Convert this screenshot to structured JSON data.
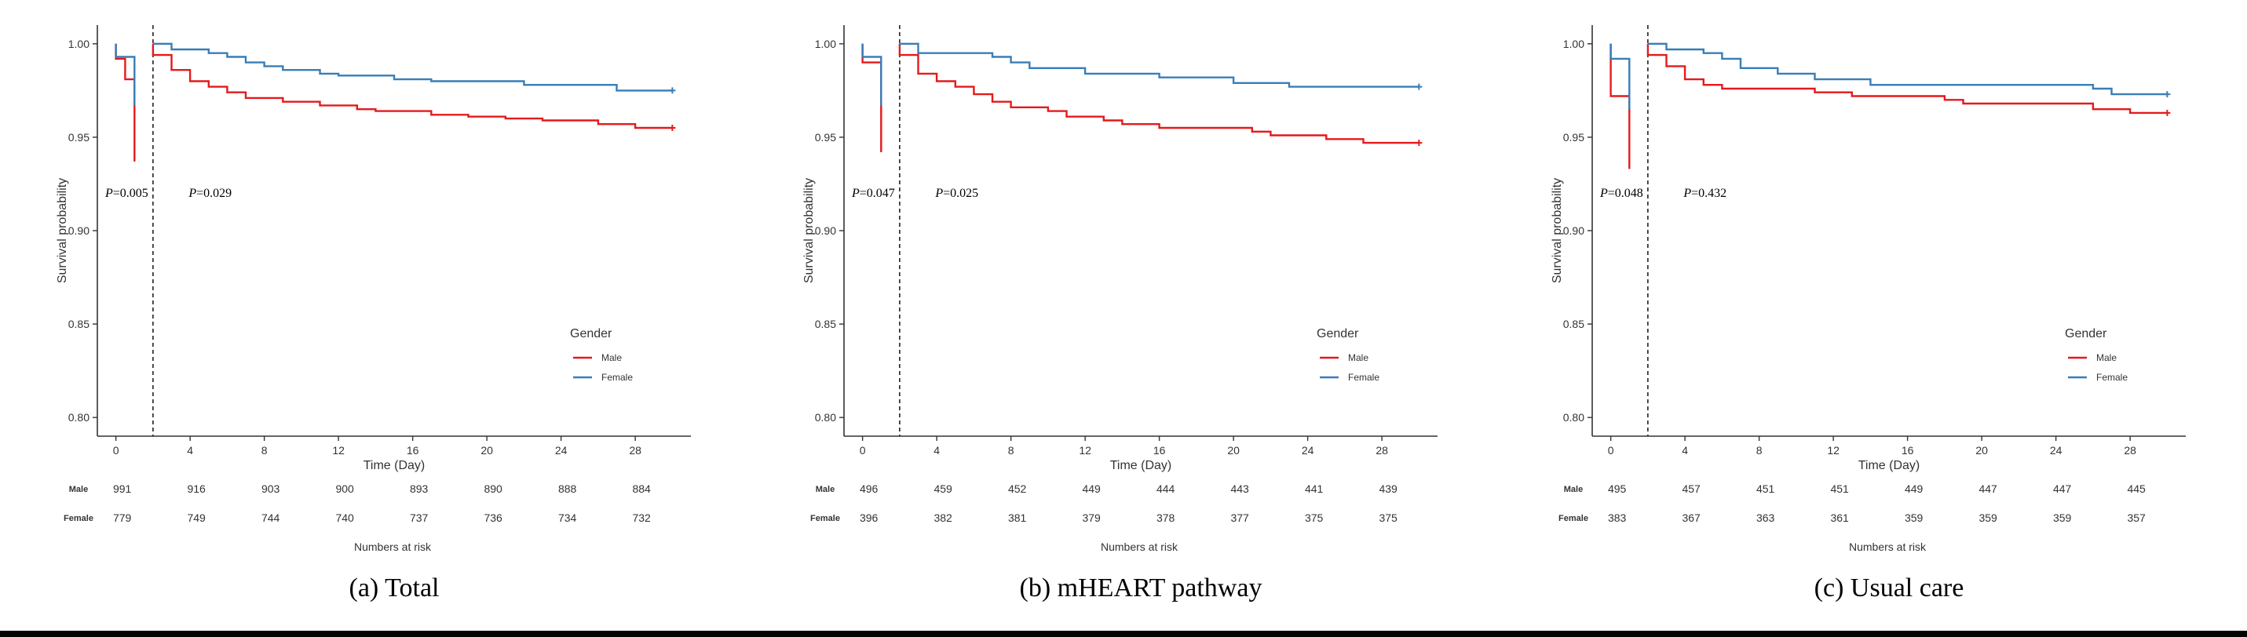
{
  "colors": {
    "male": "#e41a1c",
    "female": "#377eb8",
    "axis": "#333333",
    "text": "#000000"
  },
  "chart_data": [
    {
      "type": "line",
      "panel": "a",
      "caption": "(a) Total",
      "title": "",
      "xlabel": "Time (Day)",
      "ylabel": "Survival probability",
      "xlim": [
        -1,
        31
      ],
      "ylim": [
        0.79,
        1.01
      ],
      "xticks": [
        0,
        4,
        8,
        12,
        16,
        20,
        24,
        28
      ],
      "yticks": [
        0.8,
        0.85,
        0.9,
        0.95,
        1.0
      ],
      "ytick_labels": [
        "0.80",
        "0.85",
        "0.90",
        "0.95",
        "1.00"
      ],
      "landmark_day": 2,
      "pvalues": [
        {
          "label": "P",
          "text": "=0.005",
          "x": -1,
          "y": 0.918
        },
        {
          "label": "P",
          "text": "=0.029",
          "x": 3.5,
          "y": 0.918
        }
      ],
      "legend": {
        "title": "Gender",
        "entries": [
          "Male",
          "Female"
        ],
        "position": "center-right"
      },
      "series": [
        {
          "name": "Male",
          "color": "#e41a1c",
          "segments": [
            [
              [
                0,
                1.0
              ],
              [
                0,
                0.992
              ],
              [
                0.5,
                0.992
              ],
              [
                0.5,
                0.981
              ],
              [
                1,
                0.981
              ],
              [
                1,
                0.937
              ]
            ],
            [
              [
                2,
                1.0
              ],
              [
                2,
                0.994
              ],
              [
                3,
                0.994
              ],
              [
                3,
                0.986
              ],
              [
                4,
                0.986
              ],
              [
                4,
                0.98
              ],
              [
                5,
                0.98
              ],
              [
                5,
                0.977
              ],
              [
                6,
                0.977
              ],
              [
                6,
                0.974
              ],
              [
                7,
                0.974
              ],
              [
                7,
                0.971
              ],
              [
                9,
                0.971
              ],
              [
                9,
                0.969
              ],
              [
                11,
                0.969
              ],
              [
                11,
                0.967
              ],
              [
                13,
                0.967
              ],
              [
                13,
                0.965
              ],
              [
                14,
                0.965
              ],
              [
                14,
                0.964
              ],
              [
                17,
                0.964
              ],
              [
                17,
                0.962
              ],
              [
                19,
                0.962
              ],
              [
                19,
                0.961
              ],
              [
                21,
                0.961
              ],
              [
                21,
                0.96
              ],
              [
                23,
                0.96
              ],
              [
                23,
                0.959
              ],
              [
                26,
                0.959
              ],
              [
                26,
                0.957
              ],
              [
                28,
                0.957
              ],
              [
                28,
                0.955
              ],
              [
                30,
                0.955
              ]
            ]
          ]
        },
        {
          "name": "Female",
          "color": "#377eb8",
          "segments": [
            [
              [
                0,
                1.0
              ],
              [
                0,
                0.993
              ],
              [
                1,
                0.993
              ],
              [
                1,
                0.967
              ]
            ],
            [
              [
                2,
                1.0
              ],
              [
                3,
                1.0
              ],
              [
                3,
                0.997
              ],
              [
                5,
                0.997
              ],
              [
                5,
                0.995
              ],
              [
                6,
                0.995
              ],
              [
                6,
                0.993
              ],
              [
                7,
                0.993
              ],
              [
                7,
                0.99
              ],
              [
                8,
                0.99
              ],
              [
                8,
                0.988
              ],
              [
                9,
                0.988
              ],
              [
                9,
                0.986
              ],
              [
                11,
                0.986
              ],
              [
                11,
                0.984
              ],
              [
                12,
                0.984
              ],
              [
                12,
                0.983
              ],
              [
                15,
                0.983
              ],
              [
                15,
                0.981
              ],
              [
                17,
                0.981
              ],
              [
                17,
                0.98
              ],
              [
                22,
                0.98
              ],
              [
                22,
                0.978
              ],
              [
                27,
                0.978
              ],
              [
                27,
                0.975
              ],
              [
                30,
                0.975
              ]
            ]
          ]
        }
      ],
      "risk_table": {
        "title": "Numbers at risk",
        "x": [
          0,
          4,
          8,
          12,
          16,
          20,
          24,
          28
        ],
        "rows": [
          {
            "name": "Male",
            "values": [
              "991",
              "916",
              "903",
              "900",
              "893",
              "890",
              "888",
              "884"
            ]
          },
          {
            "name": "Female",
            "values": [
              "779",
              "749",
              "744",
              "740",
              "737",
              "736",
              "734",
              "732"
            ]
          }
        ]
      }
    },
    {
      "type": "line",
      "panel": "b",
      "caption": "(b) mHEART pathway",
      "title": "",
      "xlabel": "Time (Day)",
      "ylabel": "Survival probability",
      "xlim": [
        -1,
        31
      ],
      "ylim": [
        0.79,
        1.01
      ],
      "xticks": [
        0,
        4,
        8,
        12,
        16,
        20,
        24,
        28
      ],
      "yticks": [
        0.8,
        0.85,
        0.9,
        0.95,
        1.0
      ],
      "ytick_labels": [
        "0.80",
        "0.85",
        "0.90",
        "0.95",
        "1.00"
      ],
      "landmark_day": 2,
      "pvalues": [
        {
          "label": "P",
          "text": "=0.047",
          "x": -1,
          "y": 0.918
        },
        {
          "label": "P",
          "text": "=0.025",
          "x": 3.5,
          "y": 0.918
        }
      ],
      "legend": {
        "title": "Gender",
        "entries": [
          "Male",
          "Female"
        ],
        "position": "center-right"
      },
      "series": [
        {
          "name": "Male",
          "color": "#e41a1c",
          "segments": [
            [
              [
                0,
                1.0
              ],
              [
                0,
                0.99
              ],
              [
                1,
                0.99
              ],
              [
                1,
                0.942
              ]
            ],
            [
              [
                2,
                1.0
              ],
              [
                2,
                0.994
              ],
              [
                3,
                0.994
              ],
              [
                3,
                0.984
              ],
              [
                4,
                0.984
              ],
              [
                4,
                0.98
              ],
              [
                5,
                0.98
              ],
              [
                5,
                0.977
              ],
              [
                6,
                0.977
              ],
              [
                6,
                0.973
              ],
              [
                7,
                0.973
              ],
              [
                7,
                0.969
              ],
              [
                8,
                0.969
              ],
              [
                8,
                0.966
              ],
              [
                10,
                0.966
              ],
              [
                10,
                0.964
              ],
              [
                11,
                0.964
              ],
              [
                11,
                0.961
              ],
              [
                13,
                0.961
              ],
              [
                13,
                0.959
              ],
              [
                14,
                0.959
              ],
              [
                14,
                0.957
              ],
              [
                16,
                0.957
              ],
              [
                16,
                0.955
              ],
              [
                21,
                0.955
              ],
              [
                21,
                0.953
              ],
              [
                22,
                0.953
              ],
              [
                22,
                0.951
              ],
              [
                25,
                0.951
              ],
              [
                25,
                0.949
              ],
              [
                27,
                0.949
              ],
              [
                27,
                0.947
              ],
              [
                30,
                0.947
              ]
            ]
          ]
        },
        {
          "name": "Female",
          "color": "#377eb8",
          "segments": [
            [
              [
                0,
                1.0
              ],
              [
                0,
                0.993
              ],
              [
                1,
                0.993
              ],
              [
                1,
                0.967
              ]
            ],
            [
              [
                2,
                1.0
              ],
              [
                3,
                1.0
              ],
              [
                3,
                0.995
              ],
              [
                7,
                0.995
              ],
              [
                7,
                0.993
              ],
              [
                8,
                0.993
              ],
              [
                8,
                0.99
              ],
              [
                9,
                0.99
              ],
              [
                9,
                0.987
              ],
              [
                12,
                0.987
              ],
              [
                12,
                0.984
              ],
              [
                16,
                0.984
              ],
              [
                16,
                0.982
              ],
              [
                20,
                0.982
              ],
              [
                20,
                0.979
              ],
              [
                23,
                0.979
              ],
              [
                23,
                0.977
              ],
              [
                30,
                0.977
              ]
            ]
          ]
        }
      ],
      "risk_table": {
        "title": "Numbers at risk",
        "x": [
          0,
          4,
          8,
          12,
          16,
          20,
          24,
          28
        ],
        "rows": [
          {
            "name": "Male",
            "values": [
              "496",
              "459",
              "452",
              "449",
              "444",
              "443",
              "441",
              "439"
            ]
          },
          {
            "name": "Female",
            "values": [
              "396",
              "382",
              "381",
              "379",
              "378",
              "377",
              "375",
              "375"
            ]
          }
        ]
      }
    },
    {
      "type": "line",
      "panel": "c",
      "caption": "(c) Usual care",
      "title": "",
      "xlabel": "Time (Day)",
      "ylabel": "Survival probability",
      "xlim": [
        -1,
        31
      ],
      "ylim": [
        0.79,
        1.01
      ],
      "xticks": [
        0,
        4,
        8,
        12,
        16,
        20,
        24,
        28
      ],
      "yticks": [
        0.8,
        0.85,
        0.9,
        0.95,
        1.0
      ],
      "ytick_labels": [
        "0.80",
        "0.85",
        "0.90",
        "0.95",
        "1.00"
      ],
      "landmark_day": 2,
      "pvalues": [
        {
          "label": "P",
          "text": "=0.048",
          "x": -1,
          "y": 0.918
        },
        {
          "label": "P",
          "text": "=0.432",
          "x": 3.5,
          "y": 0.918
        }
      ],
      "legend": {
        "title": "Gender",
        "entries": [
          "Male",
          "Female"
        ],
        "position": "center-right"
      },
      "series": [
        {
          "name": "Male",
          "color": "#e41a1c",
          "segments": [
            [
              [
                0,
                1.0
              ],
              [
                0,
                0.972
              ],
              [
                1,
                0.972
              ],
              [
                1,
                0.933
              ]
            ],
            [
              [
                2,
                1.0
              ],
              [
                2,
                0.994
              ],
              [
                3,
                0.994
              ],
              [
                3,
                0.988
              ],
              [
                4,
                0.988
              ],
              [
                4,
                0.981
              ],
              [
                5,
                0.981
              ],
              [
                5,
                0.978
              ],
              [
                6,
                0.978
              ],
              [
                6,
                0.976
              ],
              [
                11,
                0.976
              ],
              [
                11,
                0.974
              ],
              [
                13,
                0.974
              ],
              [
                13,
                0.972
              ],
              [
                18,
                0.972
              ],
              [
                18,
                0.97
              ],
              [
                19,
                0.97
              ],
              [
                19,
                0.968
              ],
              [
                26,
                0.968
              ],
              [
                26,
                0.965
              ],
              [
                28,
                0.965
              ],
              [
                28,
                0.963
              ],
              [
                30,
                0.963
              ]
            ]
          ]
        },
        {
          "name": "Female",
          "color": "#377eb8",
          "segments": [
            [
              [
                0,
                1.0
              ],
              [
                0,
                0.992
              ],
              [
                1,
                0.992
              ],
              [
                1,
                0.965
              ]
            ],
            [
              [
                2,
                1.0
              ],
              [
                3,
                1.0
              ],
              [
                3,
                0.997
              ],
              [
                5,
                0.997
              ],
              [
                5,
                0.995
              ],
              [
                6,
                0.995
              ],
              [
                6,
                0.992
              ],
              [
                7,
                0.992
              ],
              [
                7,
                0.987
              ],
              [
                9,
                0.987
              ],
              [
                9,
                0.984
              ],
              [
                11,
                0.984
              ],
              [
                11,
                0.981
              ],
              [
                14,
                0.981
              ],
              [
                14,
                0.978
              ],
              [
                26,
                0.978
              ],
              [
                26,
                0.976
              ],
              [
                27,
                0.976
              ],
              [
                27,
                0.973
              ],
              [
                30,
                0.973
              ]
            ]
          ]
        }
      ],
      "risk_table": {
        "title": "Numbers at risk",
        "x": [
          0,
          4,
          8,
          12,
          16,
          20,
          24,
          28
        ],
        "rows": [
          {
            "name": "Male",
            "values": [
              "495",
              "457",
              "451",
              "451",
              "449",
              "447",
              "447",
              "445"
            ]
          },
          {
            "name": "Female",
            "values": [
              "383",
              "367",
              "363",
              "361",
              "359",
              "359",
              "359",
              "357"
            ]
          }
        ]
      }
    }
  ]
}
